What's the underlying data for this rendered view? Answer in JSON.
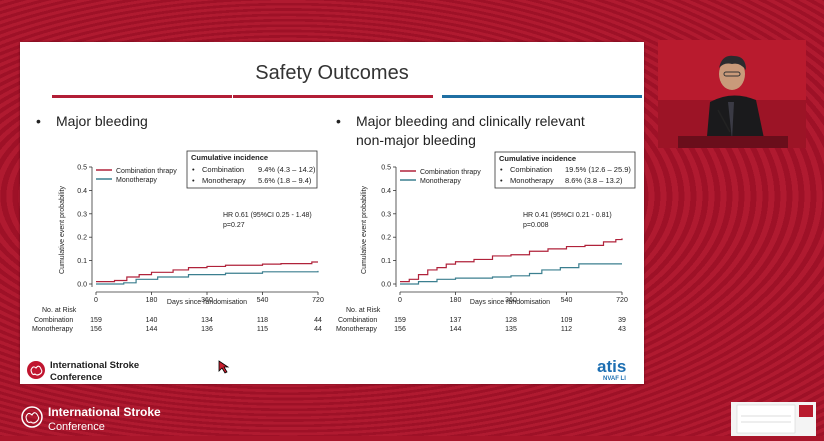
{
  "slide": {
    "title": "Safety Outcomes",
    "rule_colors": [
      "#b21e36",
      "#b21e36",
      "#1f6fa3"
    ],
    "conference_name_line1": "International Stroke",
    "conference_name_line2": "Conference",
    "sponsor_logo": "atis",
    "sponsor_sub": "NVAF LI"
  },
  "left_panel": {
    "heading": "Major bleeding",
    "legend_box": {
      "title": "Cumulative incidence",
      "rows": [
        {
          "bullet": "•",
          "group": "Combination",
          "value": "9.4% (4.3 – 14.2)"
        },
        {
          "bullet": "•",
          "group": "Monotherapy",
          "value": "5.6% (1.8 – 9.4)"
        }
      ]
    },
    "stats_line1": "HR 0.61 (95%CI 0.25 - 1.48)",
    "stats_line2": "p=0.27",
    "series_legend": [
      "Combination thrapy",
      "Monotherapy"
    ],
    "risk_table": {
      "header": "No. at Risk",
      "rows": [
        {
          "label": "Combination",
          "values": [
            "159",
            "140",
            "134",
            "118",
            "44"
          ]
        },
        {
          "label": "Monotherapy",
          "values": [
            "156",
            "144",
            "136",
            "115",
            "44"
          ]
        }
      ]
    }
  },
  "right_panel": {
    "heading_line1": "Major bleeding and clinically relevant",
    "heading_line2": "non-major bleeding",
    "legend_box": {
      "title": "Cumulative incidence",
      "rows": [
        {
          "bullet": "•",
          "group": "Combination",
          "value": "19.5% (12.6 – 25.9)"
        },
        {
          "bullet": "•",
          "group": "Monotherapy",
          "value": "8.6% (3.8 – 13.2)"
        }
      ]
    },
    "stats_line1": "HR 0.41 (95%CI 0.21 - 0.81)",
    "stats_line2": "p=0.008",
    "series_legend": [
      "Combination thrapy",
      "Monotherapy"
    ],
    "risk_table": {
      "header": "No. at Risk",
      "rows": [
        {
          "label": "Combination",
          "values": [
            "159",
            "137",
            "128",
            "109",
            "39"
          ]
        },
        {
          "label": "Monotherapy",
          "values": [
            "156",
            "144",
            "135",
            "112",
            "43"
          ]
        }
      ]
    }
  },
  "chart_data": [
    {
      "type": "line",
      "title": "Major bleeding",
      "xlabel": "Days since randomisation",
      "ylabel": "Cumulative event probability",
      "xlim": [
        0,
        720
      ],
      "ylim": [
        0,
        0.5
      ],
      "xticks": [
        "0",
        "180",
        "360",
        "540",
        "720"
      ],
      "yticks": [
        "0.0",
        "0.1",
        "0.2",
        "0.3",
        "0.4",
        "0.5"
      ],
      "series": [
        {
          "name": "Combination thrapy",
          "color": "#b0223a",
          "x": [
            0,
            60,
            100,
            140,
            180,
            250,
            300,
            360,
            420,
            540,
            600,
            700,
            720
          ],
          "y": [
            0.01,
            0.015,
            0.03,
            0.04,
            0.05,
            0.06,
            0.07,
            0.075,
            0.08,
            0.085,
            0.087,
            0.094,
            0.094
          ]
        },
        {
          "name": "Monotherapy",
          "color": "#3b7f8f",
          "x": [
            0,
            90,
            130,
            200,
            300,
            420,
            540,
            720
          ],
          "y": [
            0.0,
            0.005,
            0.02,
            0.03,
            0.04,
            0.046,
            0.052,
            0.056
          ]
        }
      ]
    },
    {
      "type": "line",
      "title": "Major bleeding and clinically relevant non-major bleeding",
      "xlabel": "Days since randomisation",
      "ylabel": "Cumulative event probability",
      "xlim": [
        0,
        720
      ],
      "ylim": [
        0,
        0.5
      ],
      "xticks": [
        "0",
        "180",
        "360",
        "540",
        "720"
      ],
      "yticks": [
        "0.0",
        "0.1",
        "0.2",
        "0.3",
        "0.4",
        "0.5"
      ],
      "series": [
        {
          "name": "Combination thrapy",
          "color": "#b0223a",
          "x": [
            0,
            30,
            60,
            90,
            120,
            150,
            180,
            240,
            300,
            360,
            420,
            480,
            540,
            600,
            660,
            700,
            720
          ],
          "y": [
            0.01,
            0.02,
            0.04,
            0.06,
            0.07,
            0.085,
            0.095,
            0.105,
            0.12,
            0.125,
            0.14,
            0.15,
            0.16,
            0.165,
            0.18,
            0.19,
            0.195
          ]
        },
        {
          "name": "Monotherapy",
          "color": "#3b7f8f",
          "x": [
            0,
            60,
            120,
            180,
            300,
            360,
            420,
            460,
            520,
            580,
            720
          ],
          "y": [
            0.0,
            0.01,
            0.02,
            0.025,
            0.03,
            0.035,
            0.045,
            0.06,
            0.07,
            0.086,
            0.086
          ]
        }
      ]
    }
  ]
}
